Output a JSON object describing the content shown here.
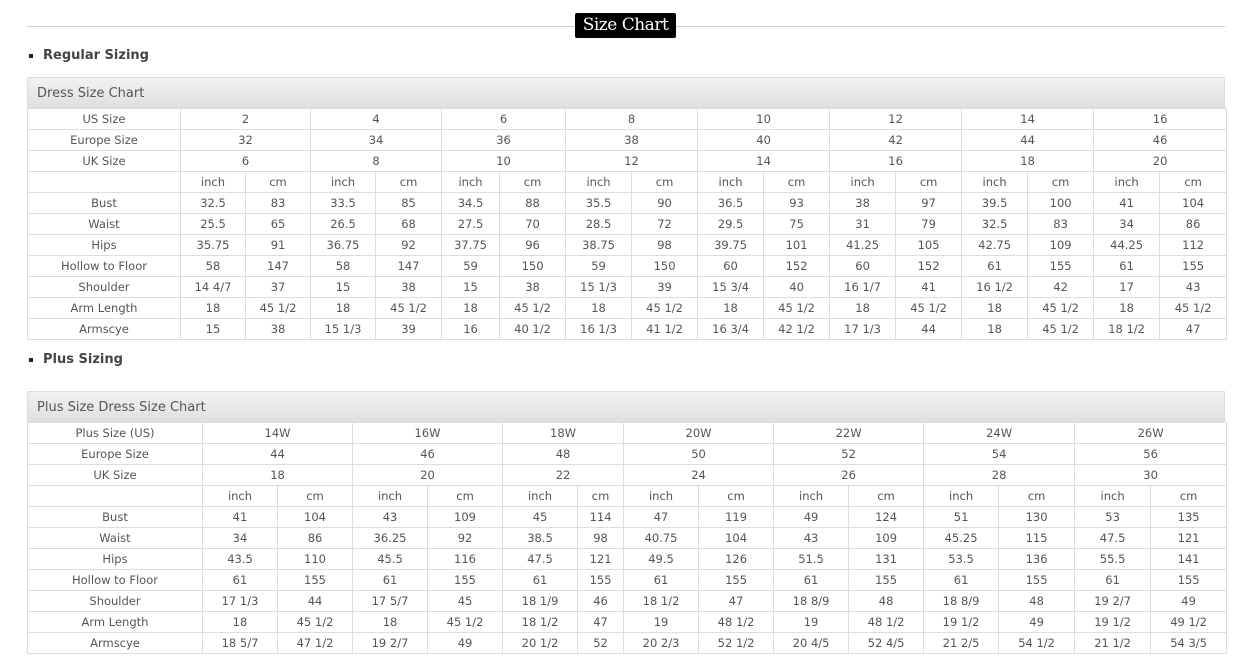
{
  "page_title": "Size Chart",
  "regular": {
    "section_label": "Regular Sizing",
    "chart_title": "Dress Size Chart",
    "size_rows": [
      {
        "label": "US Size",
        "values": [
          "2",
          "4",
          "6",
          "8",
          "10",
          "12",
          "14",
          "16"
        ]
      },
      {
        "label": "Europe Size",
        "values": [
          "32",
          "34",
          "36",
          "38",
          "40",
          "42",
          "44",
          "46"
        ]
      },
      {
        "label": "UK Size",
        "values": [
          "6",
          "8",
          "10",
          "12",
          "14",
          "16",
          "18",
          "20"
        ]
      }
    ],
    "unit_inch": "inch",
    "unit_cm": "cm",
    "measure_rows": [
      {
        "label": "Bust",
        "values": [
          "32.5",
          "83",
          "33.5",
          "85",
          "34.5",
          "88",
          "35.5",
          "90",
          "36.5",
          "93",
          "38",
          "97",
          "39.5",
          "100",
          "41",
          "104"
        ]
      },
      {
        "label": "Waist",
        "values": [
          "25.5",
          "65",
          "26.5",
          "68",
          "27.5",
          "70",
          "28.5",
          "72",
          "29.5",
          "75",
          "31",
          "79",
          "32.5",
          "83",
          "34",
          "86"
        ]
      },
      {
        "label": "Hips",
        "values": [
          "35.75",
          "91",
          "36.75",
          "92",
          "37.75",
          "96",
          "38.75",
          "98",
          "39.75",
          "101",
          "41.25",
          "105",
          "42.75",
          "109",
          "44.25",
          "112"
        ]
      },
      {
        "label": "Hollow to Floor",
        "values": [
          "58",
          "147",
          "58",
          "147",
          "59",
          "150",
          "59",
          "150",
          "60",
          "152",
          "60",
          "152",
          "61",
          "155",
          "61",
          "155"
        ]
      },
      {
        "label": "Shoulder",
        "values": [
          "14 4/7",
          "37",
          "15",
          "38",
          "15",
          "38",
          "15 1/3",
          "39",
          "15 3/4",
          "40",
          "16 1/7",
          "41",
          "16 1/2",
          "42",
          "17",
          "43"
        ]
      },
      {
        "label": "Arm Length",
        "values": [
          "18",
          "45 1/2",
          "18",
          "45 1/2",
          "18",
          "45 1/2",
          "18",
          "45 1/2",
          "18",
          "45 1/2",
          "18",
          "45 1/2",
          "18",
          "45 1/2",
          "18",
          "45 1/2"
        ]
      },
      {
        "label": "Armscye",
        "values": [
          "15",
          "38",
          "15 1/3",
          "39",
          "16",
          "40 1/2",
          "16 1/3",
          "41 1/2",
          "16 3/4",
          "42 1/2",
          "17 1/3",
          "44",
          "18",
          "45 1/2",
          "18 1/2",
          "47"
        ]
      }
    ]
  },
  "plus": {
    "section_label": "Plus Sizing",
    "chart_title": "Plus Size Dress Size Chart",
    "size_rows": [
      {
        "label": "Plus Size (US)",
        "values": [
          "14W",
          "16W",
          "18W",
          "20W",
          "22W",
          "24W",
          "26W"
        ]
      },
      {
        "label": "Europe Size",
        "values": [
          "44",
          "46",
          "48",
          "50",
          "52",
          "54",
          "56"
        ]
      },
      {
        "label": "UK Size",
        "values": [
          "18",
          "20",
          "22",
          "24",
          "26",
          "28",
          "30"
        ]
      }
    ],
    "unit_inch": "inch",
    "unit_cm": "cm",
    "measure_rows": [
      {
        "label": "Bust",
        "values": [
          "41",
          "104",
          "43",
          "109",
          "45",
          "114",
          "47",
          "119",
          "49",
          "124",
          "51",
          "130",
          "53",
          "135"
        ]
      },
      {
        "label": "Waist",
        "values": [
          "34",
          "86",
          "36.25",
          "92",
          "38.5",
          "98",
          "40.75",
          "104",
          "43",
          "109",
          "45.25",
          "115",
          "47.5",
          "121"
        ]
      },
      {
        "label": "Hips",
        "values": [
          "43.5",
          "110",
          "45.5",
          "116",
          "47.5",
          "121",
          "49.5",
          "126",
          "51.5",
          "131",
          "53.5",
          "136",
          "55.5",
          "141"
        ]
      },
      {
        "label": "Hollow to Floor",
        "values": [
          "61",
          "155",
          "61",
          "155",
          "61",
          "155",
          "61",
          "155",
          "61",
          "155",
          "61",
          "155",
          "61",
          "155"
        ]
      },
      {
        "label": "Shoulder",
        "values": [
          "17 1/3",
          "44",
          "17 5/7",
          "45",
          "18 1/9",
          "46",
          "18 1/2",
          "47",
          "18 8/9",
          "48",
          "18 8/9",
          "48",
          "19 2/7",
          "49"
        ]
      },
      {
        "label": "Arm Length",
        "values": [
          "18",
          "45 1/2",
          "18",
          "45 1/2",
          "18 1/2",
          "47",
          "19",
          "48 1/2",
          "19",
          "48 1/2",
          "19 1/2",
          "49",
          "19 1/2",
          "49 1/2"
        ]
      },
      {
        "label": "Armscye",
        "values": [
          "18 5/7",
          "47 1/2",
          "19 2/7",
          "49",
          "20 1/2",
          "52",
          "20 2/3",
          "52 1/2",
          "20 4/5",
          "52 4/5",
          "21 2/5",
          "54 1/2",
          "21 1/2",
          "54 3/5"
        ]
      }
    ]
  }
}
